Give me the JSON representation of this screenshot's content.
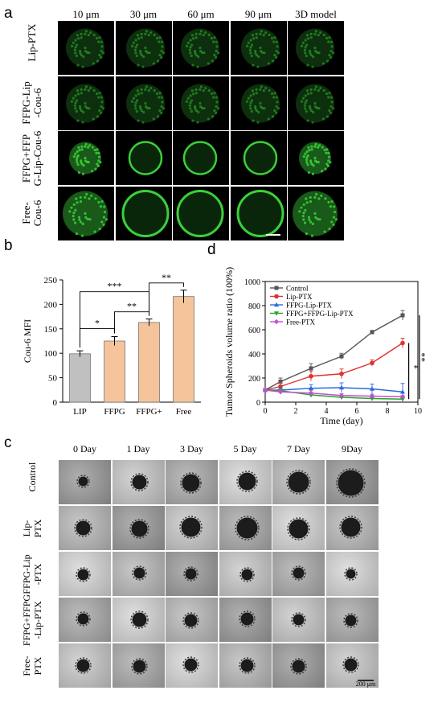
{
  "panels": {
    "a": "a",
    "b": "b",
    "c": "c",
    "d": "d"
  },
  "panel_a": {
    "columns": [
      "10 μm",
      "30 μm",
      "60 μm",
      "90 μm",
      "3D model"
    ],
    "rows": [
      {
        "lines": [
          "Lip-PTX"
        ]
      },
      {
        "lines": [
          "FFPG-Lip",
          "-Cou-6"
        ]
      },
      {
        "lines": [
          "FFPG+FFP",
          "G-Lip-Cou-6"
        ]
      },
      {
        "lines": [
          "Free-",
          "Cou-6"
        ]
      }
    ],
    "colors": {
      "fluorescence": "#3ad13a",
      "background": "#000000",
      "scale_bar": "#ffffff"
    }
  },
  "panel_c": {
    "columns": [
      "0 Day",
      "1 Day",
      "3 Day",
      "5 Day",
      "7 Day",
      "9Day"
    ],
    "rows": [
      {
        "lines": [
          "Control"
        ]
      },
      {
        "lines": [
          "Lip-",
          "PTX"
        ]
      },
      {
        "lines": [
          "FFPG-Lip",
          "-PTX"
        ]
      },
      {
        "lines": [
          "FFPG+FFPG",
          "-Lip-PTX"
        ]
      },
      {
        "lines": [
          "Free-",
          "PTX"
        ]
      }
    ],
    "scale_bar_label": "200 μm"
  },
  "chart_data": [
    {
      "type": "bar",
      "ylabel": "Cou-6 MFI",
      "categories": [
        "LIP",
        "FFPG",
        "FFPG+",
        "Free"
      ],
      "values": [
        99,
        125,
        163,
        216
      ],
      "errors": [
        6,
        9,
        7,
        13
      ],
      "ylim": [
        0,
        250
      ],
      "yticks": [
        0,
        50,
        100,
        150,
        200,
        250
      ],
      "colors": [
        "#c0c0c0",
        "#f5c49a",
        "#f5c49a",
        "#f5c49a"
      ],
      "significance": [
        {
          "from": 0,
          "to": 1,
          "label": "*"
        },
        {
          "from": 1,
          "to": 2,
          "label": "**"
        },
        {
          "from": 0,
          "to": 2,
          "label": "***"
        },
        {
          "from": 2,
          "to": 3,
          "label": "**"
        }
      ]
    },
    {
      "type": "line",
      "ylabel": "Tumor Spheroids volume ratio (100%)",
      "xlabel": "Time (day)",
      "xlim": [
        0,
        10
      ],
      "ylim": [
        0,
        1000
      ],
      "xticks": [
        0,
        2,
        4,
        6,
        8,
        10
      ],
      "yticks": [
        0,
        200,
        400,
        600,
        800,
        1000
      ],
      "x": [
        0,
        1,
        3,
        5,
        7,
        9
      ],
      "series": [
        {
          "name": "Control",
          "color": "#555555",
          "marker": "square",
          "values": [
            100,
            170,
            280,
            380,
            580,
            720
          ],
          "errors": [
            10,
            30,
            40,
            25,
            15,
            40
          ]
        },
        {
          "name": "Lip-PTX",
          "color": "#e03030",
          "marker": "circle",
          "values": [
            100,
            130,
            215,
            235,
            325,
            490
          ],
          "errors": [
            10,
            30,
            40,
            40,
            25,
            40
          ]
        },
        {
          "name": "FFPG-Lip-PTX",
          "color": "#2a6ae0",
          "marker": "triangle",
          "values": [
            100,
            100,
            115,
            120,
            110,
            85
          ],
          "errors": [
            10,
            20,
            30,
            40,
            40,
            70
          ]
        },
        {
          "name": "FFPG+FFPG-Lip-PTX",
          "color": "#2aa02a",
          "marker": "triangle-down",
          "values": [
            100,
            95,
            60,
            40,
            30,
            25
          ],
          "errors": [
            10,
            15,
            20,
            15,
            10,
            10
          ]
        },
        {
          "name": "Free-PTX",
          "color": "#c050d0",
          "marker": "diamond",
          "values": [
            100,
            85,
            75,
            55,
            50,
            45
          ],
          "errors": [
            10,
            15,
            20,
            15,
            15,
            10
          ]
        }
      ],
      "significance": [
        {
          "label": "*"
        },
        {
          "label": "**"
        }
      ]
    }
  ]
}
